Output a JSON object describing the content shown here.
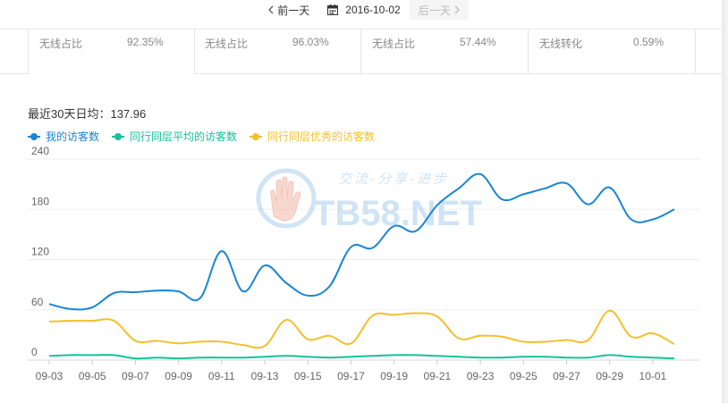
{
  "date_nav": {
    "prev_label": "前一天",
    "date": "2016-10-02",
    "next_label": "后一天"
  },
  "cards": [
    {
      "label": "无线占比",
      "value": "92.35%"
    },
    {
      "label": "无线占比",
      "value": "96.03%"
    },
    {
      "label": "无线占比",
      "value": "57.44%"
    },
    {
      "label": "无线转化",
      "value": "0.59%"
    }
  ],
  "summary": {
    "text": "最近30天日均：137.96"
  },
  "watermark": {
    "tagline": "交流-分享-进步",
    "brand": "TB58.NET"
  },
  "colors": {
    "mine": "#1a85d6",
    "avg": "#14c29b",
    "excellent": "#f5bf2c"
  },
  "chart_data": {
    "type": "line",
    "x": [
      "09-03",
      "09-04",
      "09-05",
      "09-06",
      "09-07",
      "09-08",
      "09-09",
      "09-10",
      "09-11",
      "09-12",
      "09-13",
      "09-14",
      "09-15",
      "09-16",
      "09-17",
      "09-18",
      "09-19",
      "09-20",
      "09-21",
      "09-22",
      "09-23",
      "09-24",
      "09-25",
      "09-26",
      "09-27",
      "09-28",
      "09-29",
      "09-30",
      "10-01",
      "10-02"
    ],
    "x_tick_labels": [
      "09-03",
      "09-05",
      "09-07",
      "09-09",
      "09-11",
      "09-13",
      "09-15",
      "09-17",
      "09-19",
      "09-21",
      "09-23",
      "09-25",
      "09-27",
      "09-29",
      "10-01"
    ],
    "y_ticks": [
      0,
      60,
      120,
      180,
      240
    ],
    "ylim": [
      0,
      240
    ],
    "grid": true,
    "legend_position": "top-left",
    "series": [
      {
        "name": "我的访客数",
        "color": "#1a85d6",
        "values": [
          67,
          61,
          63,
          80,
          81,
          83,
          82,
          74,
          130,
          82,
          113,
          92,
          77,
          88,
          135,
          134,
          160,
          154,
          185,
          205,
          222,
          192,
          198,
          205,
          211,
          186,
          206,
          168,
          168,
          180
        ]
      },
      {
        "name": "同行同层平均的访客数",
        "color": "#14c29b",
        "values": [
          5,
          6,
          6,
          6,
          2,
          3,
          2,
          3,
          3,
          3,
          4,
          5,
          4,
          3,
          4,
          5,
          6,
          6,
          5,
          4,
          3,
          3,
          4,
          4,
          3,
          3,
          6,
          4,
          3,
          2
        ]
      },
      {
        "name": "同行同层优秀的访客数",
        "color": "#f5bf2c",
        "values": [
          46,
          47,
          47,
          47,
          23,
          23,
          20,
          22,
          22,
          18,
          17,
          48,
          25,
          29,
          20,
          53,
          54,
          56,
          52,
          26,
          29,
          28,
          22,
          22,
          24,
          24,
          59,
          28,
          32,
          19
        ]
      }
    ]
  }
}
